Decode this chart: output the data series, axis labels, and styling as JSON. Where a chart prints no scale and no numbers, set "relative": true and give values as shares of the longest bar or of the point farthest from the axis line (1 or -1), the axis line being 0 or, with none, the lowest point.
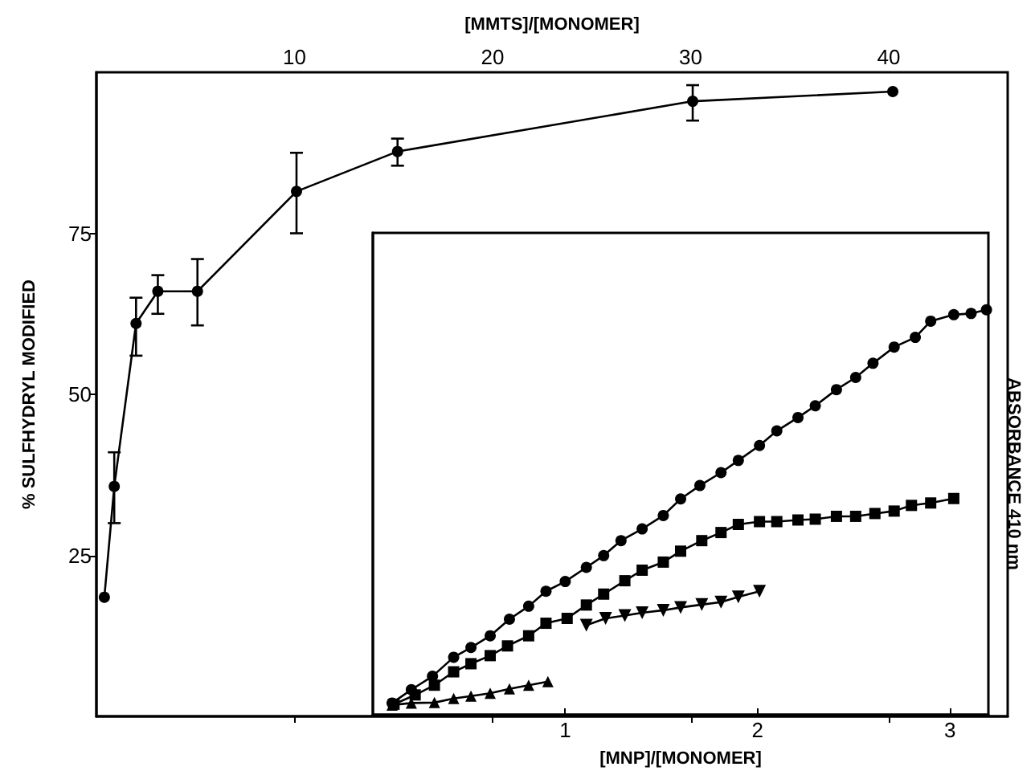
{
  "chart_data": [
    {
      "type": "line",
      "ylabel": "% SULFHYDRYL MODIFIED",
      "xlabel": "[MMTS]/[MONOMER]",
      "xlim": [
        0,
        46
      ],
      "xticks": [
        10,
        20,
        30,
        40
      ],
      "ylim": [
        0,
        100
      ],
      "yticks": [
        25,
        50,
        75
      ],
      "marker": "circle",
      "line_style": "solid",
      "grid": false,
      "x": [
        0.4,
        0.9,
        2.0,
        3.1,
        5.1,
        10.1,
        15.2,
        30.1,
        40.2
      ],
      "values": [
        18.5,
        35.7,
        61,
        66,
        66,
        81.5,
        87.7,
        95.5,
        97
      ],
      "color": "#000000",
      "errors": [
        null,
        [
          30,
          41
        ],
        [
          56,
          65
        ],
        [
          62.5,
          68.5
        ],
        [
          60.7,
          71
        ],
        [
          75,
          87.5
        ],
        [
          85.5,
          89.7
        ],
        [
          92.5,
          98
        ],
        null
      ]
    },
    {
      "type": "line",
      "relative": true,
      "xlabel": "[MNP]/[MONOMER]",
      "ylabel": "ABSORBANCE 410 nm",
      "xlim": [
        0,
        3.2
      ],
      "xticks": [
        1,
        2,
        3
      ],
      "grid": false,
      "line_style": "solid",
      "series": [
        {
          "color": "#000000",
          "marker": "circle",
          "x": [
            0.1,
            0.2,
            0.31,
            0.42,
            0.51,
            0.61,
            0.71,
            0.81,
            0.9,
            1.0,
            1.11,
            1.2,
            1.29,
            1.4,
            1.51,
            1.6,
            1.7,
            1.81,
            1.9,
            2.01,
            2.1,
            2.21,
            2.3,
            2.41,
            2.51,
            2.6,
            2.71,
            2.82,
            2.9,
            3.02,
            3.11,
            3.19
          ],
          "values": [
            0.029,
            0.062,
            0.095,
            0.142,
            0.166,
            0.195,
            0.236,
            0.268,
            0.305,
            0.329,
            0.364,
            0.393,
            0.43,
            0.459,
            0.492,
            0.533,
            0.566,
            0.598,
            0.628,
            0.665,
            0.701,
            0.734,
            0.763,
            0.803,
            0.833,
            0.868,
            0.908,
            0.932,
            0.972,
            0.988,
            0.991,
            1.0
          ]
        },
        {
          "color": "#000000",
          "marker": "square",
          "x": [
            0.11,
            0.22,
            0.32,
            0.42,
            0.51,
            0.61,
            0.7,
            0.81,
            0.9,
            1.01,
            1.11,
            1.2,
            1.31,
            1.4,
            1.51,
            1.6,
            1.71,
            1.81,
            1.9,
            2.01,
            2.1,
            2.21,
            2.3,
            2.41,
            2.51,
            2.61,
            2.71,
            2.8,
            2.9,
            3.02
          ],
          "values": [
            0.026,
            0.049,
            0.073,
            0.106,
            0.126,
            0.146,
            0.17,
            0.195,
            0.226,
            0.238,
            0.271,
            0.298,
            0.331,
            0.357,
            0.377,
            0.404,
            0.43,
            0.45,
            0.47,
            0.477,
            0.477,
            0.481,
            0.483,
            0.49,
            0.49,
            0.497,
            0.503,
            0.517,
            0.523,
            0.534
          ]
        },
        {
          "color": "#000000",
          "marker": "triangle-down",
          "x": [
            1.11,
            1.21,
            1.31,
            1.4,
            1.51,
            1.6,
            1.71,
            1.81,
            1.9,
            2.01
          ],
          "values": [
            0.221,
            0.238,
            0.245,
            0.252,
            0.258,
            0.265,
            0.272,
            0.278,
            0.291,
            0.305
          ]
        },
        {
          "color": "#000000",
          "marker": "triangle",
          "x": [
            0.1,
            0.2,
            0.32,
            0.42,
            0.51,
            0.61,
            0.71,
            0.81,
            0.91
          ],
          "values": [
            0.024,
            0.029,
            0.03,
            0.04,
            0.046,
            0.053,
            0.064,
            0.073,
            0.082
          ]
        }
      ]
    }
  ]
}
